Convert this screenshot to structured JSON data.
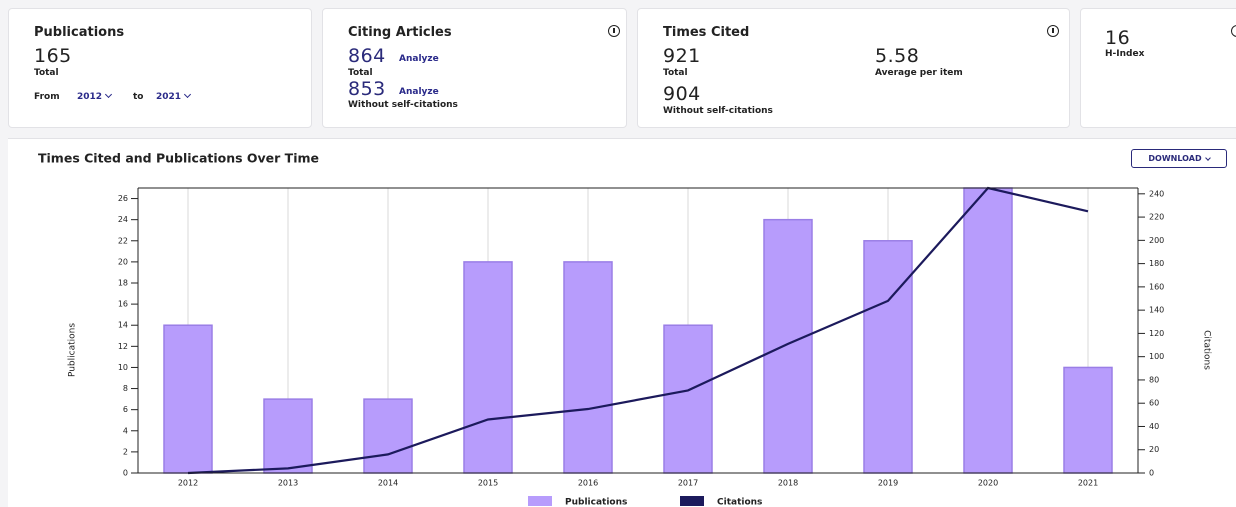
{
  "cards": {
    "publications": {
      "title": "Publications",
      "value": 165,
      "label": "Total",
      "from_label": "From",
      "from": "2012",
      "to_label": "to",
      "to": "2021"
    },
    "citing": {
      "title": "Citing Articles",
      "total": 864,
      "analyze": "Analyze",
      "total_label": "Total",
      "without": 853,
      "without_analyze": "Analyze",
      "without_label": "Without self-citations"
    },
    "times_cited": {
      "title": "Times Cited",
      "total": 921,
      "total_label": "Total",
      "average": 5.58,
      "average_label": "Average per item",
      "without": 904,
      "without_label": "Without self-citations"
    },
    "hindex": {
      "value": 16,
      "label": "H-Index"
    }
  },
  "download": "DOWNLOAD",
  "chart_data": {
    "type": "bar_line",
    "title": "Times Cited and Publications Over Time",
    "categories": [
      "2012",
      "2013",
      "2014",
      "2015",
      "2016",
      "2017",
      "2018",
      "2019",
      "2020",
      "2021"
    ],
    "series": [
      {
        "name": "Publications",
        "color": "#b79cfc",
        "values": [
          14,
          7,
          7,
          20,
          20,
          14,
          24,
          22,
          27,
          10
        ]
      },
      {
        "name": "Citations",
        "color": "#1c1a5c",
        "axis": "y2",
        "values": [
          0,
          4,
          16,
          46,
          55,
          71,
          111,
          148,
          245,
          225
        ]
      }
    ],
    "ylabel": "Publications",
    "y2label": "Citations",
    "ylim": [
      0,
      27
    ],
    "yticks": [
      0,
      2,
      4,
      6,
      8,
      10,
      12,
      14,
      16,
      18,
      20,
      22,
      24,
      26
    ],
    "y2lim": [
      0,
      245
    ],
    "y2ticks": [
      0,
      20,
      40,
      60,
      80,
      100,
      120,
      140,
      160,
      180,
      200,
      220,
      240
    ],
    "grid": true
  }
}
